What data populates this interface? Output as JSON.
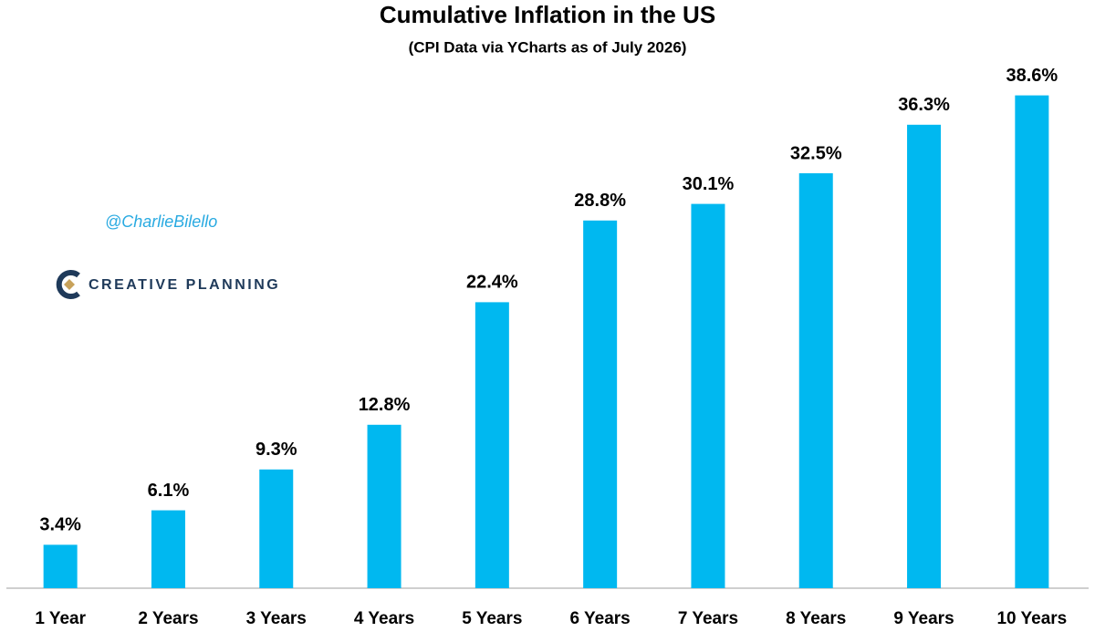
{
  "chart_data": {
    "type": "bar",
    "title": "Cumulative Inflation in the US",
    "subtitle": "(CPI Data via YCharts as of July 2026)",
    "annotations": [
      "@CharlieBilello",
      "CREATIVE PLANNING"
    ],
    "categories": [
      "1 Year",
      "2 Years",
      "3 Years",
      "4 Years",
      "5 Years",
      "6 Years",
      "7 Years",
      "8 Years",
      "9 Years",
      "10 Years"
    ],
    "values": [
      3.4,
      6.1,
      9.3,
      12.8,
      22.4,
      28.8,
      30.1,
      32.5,
      36.3,
      38.6
    ],
    "value_labels": [
      "3.4%",
      "6.1%",
      "9.3%",
      "12.8%",
      "22.4%",
      "28.8%",
      "30.1%",
      "32.5%",
      "36.3%",
      "38.6%"
    ],
    "color": "#00b8f0",
    "ylim": [
      0,
      40
    ]
  }
}
